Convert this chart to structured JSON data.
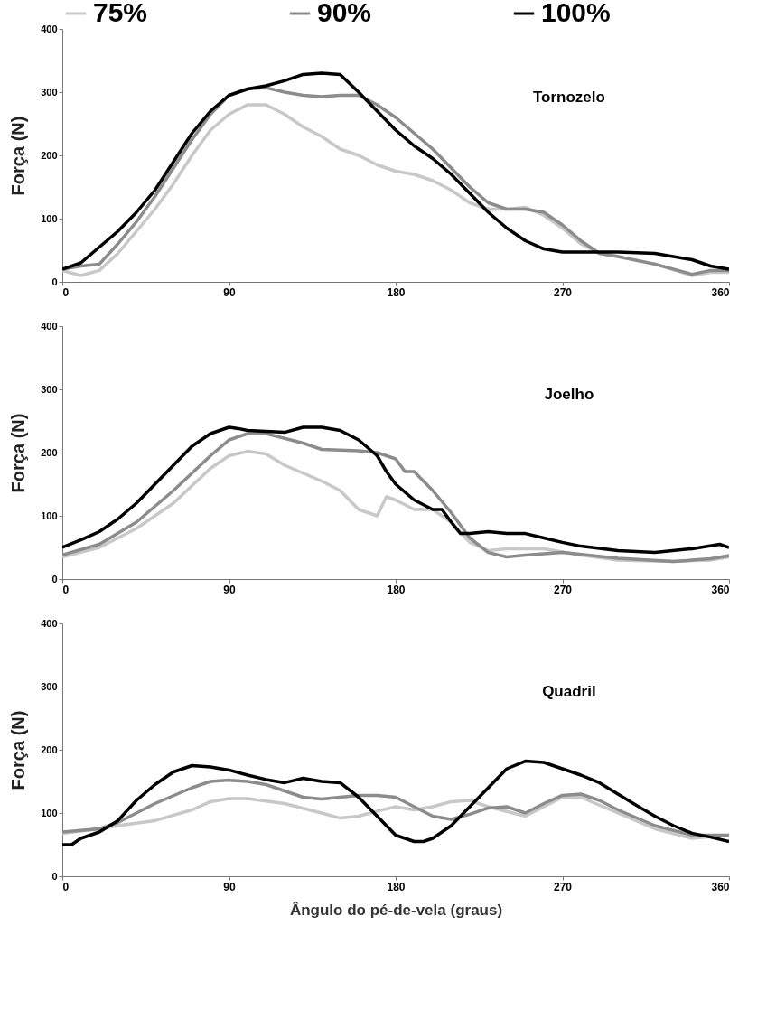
{
  "chart_data": [
    {
      "type": "line",
      "ylabel": "Força (N)",
      "annotations": [
        "Tornozelo"
      ],
      "legend": "top",
      "grid": false,
      "xlim": [
        0,
        360
      ],
      "xticks": [
        0,
        90,
        180,
        270,
        360
      ],
      "ylim": [
        0,
        400
      ],
      "yticks": [
        0,
        100,
        200,
        300,
        400
      ],
      "series": [
        {
          "name": "75%",
          "color": "#c8c8c8",
          "x": [
            0,
            10,
            20,
            30,
            40,
            50,
            60,
            70,
            80,
            90,
            100,
            110,
            120,
            130,
            140,
            150,
            160,
            170,
            180,
            190,
            200,
            210,
            220,
            230,
            240,
            250,
            260,
            270,
            280,
            290,
            300,
            320,
            340,
            350,
            360
          ],
          "values": [
            18,
            10,
            18,
            45,
            80,
            115,
            155,
            200,
            240,
            265,
            280,
            280,
            265,
            245,
            230,
            210,
            200,
            185,
            175,
            170,
            160,
            145,
            125,
            115,
            115,
            118,
            105,
            85,
            60,
            45,
            40,
            28,
            10,
            15,
            15
          ]
        },
        {
          "name": "90%",
          "color": "#8c8c8c",
          "x": [
            0,
            10,
            20,
            30,
            40,
            50,
            60,
            70,
            80,
            90,
            100,
            110,
            120,
            130,
            140,
            150,
            160,
            170,
            180,
            190,
            200,
            210,
            220,
            230,
            240,
            250,
            260,
            270,
            280,
            290,
            300,
            320,
            340,
            350,
            360
          ],
          "values": [
            20,
            25,
            28,
            60,
            95,
            135,
            180,
            225,
            265,
            295,
            305,
            307,
            300,
            295,
            293,
            295,
            295,
            280,
            260,
            235,
            210,
            180,
            150,
            125,
            115,
            115,
            110,
            90,
            65,
            45,
            40,
            28,
            12,
            18,
            18
          ]
        },
        {
          "name": "100%",
          "color": "#000000",
          "x": [
            0,
            10,
            20,
            30,
            40,
            50,
            60,
            70,
            80,
            90,
            100,
            110,
            120,
            130,
            140,
            150,
            160,
            170,
            180,
            190,
            200,
            210,
            220,
            230,
            240,
            250,
            260,
            270,
            280,
            300,
            320,
            340,
            350,
            360
          ],
          "values": [
            20,
            30,
            55,
            80,
            110,
            145,
            190,
            235,
            270,
            295,
            305,
            310,
            318,
            328,
            330,
            328,
            300,
            270,
            240,
            215,
            195,
            170,
            140,
            110,
            85,
            65,
            52,
            47,
            47,
            47,
            45,
            35,
            25,
            20
          ]
        }
      ]
    },
    {
      "type": "line",
      "ylabel": "Força (N)",
      "annotations": [
        "Joelho"
      ],
      "grid": false,
      "xlim": [
        0,
        360
      ],
      "xticks": [
        0,
        90,
        180,
        270,
        360
      ],
      "ylim": [
        0,
        400
      ],
      "yticks": [
        0,
        100,
        200,
        300,
        400
      ],
      "series": [
        {
          "color": "#c8c8c8",
          "x": [
            0,
            20,
            40,
            60,
            80,
            90,
            100,
            110,
            120,
            140,
            150,
            160,
            170,
            175,
            180,
            190,
            200,
            210,
            220,
            230,
            240,
            260,
            280,
            300,
            330,
            350,
            360
          ],
          "values": [
            35,
            50,
            80,
            120,
            175,
            195,
            202,
            198,
            180,
            155,
            140,
            110,
            100,
            130,
            125,
            110,
            110,
            90,
            58,
            45,
            48,
            48,
            38,
            30,
            28,
            30,
            35
          ]
        },
        {
          "color": "#8c8c8c",
          "x": [
            0,
            20,
            40,
            60,
            80,
            90,
            100,
            110,
            130,
            140,
            160,
            170,
            180,
            185,
            190,
            200,
            210,
            220,
            230,
            240,
            250,
            270,
            300,
            330,
            350,
            360
          ],
          "values": [
            38,
            55,
            90,
            140,
            195,
            220,
            230,
            230,
            215,
            205,
            203,
            200,
            190,
            170,
            170,
            140,
            105,
            65,
            42,
            35,
            38,
            42,
            33,
            28,
            32,
            37
          ]
        },
        {
          "color": "#000000",
          "x": [
            0,
            10,
            20,
            30,
            40,
            50,
            60,
            70,
            80,
            90,
            95,
            100,
            120,
            130,
            140,
            150,
            160,
            170,
            175,
            180,
            190,
            200,
            205,
            210,
            215,
            220,
            230,
            240,
            250,
            260,
            270,
            280,
            300,
            320,
            340,
            355,
            360
          ],
          "values": [
            50,
            62,
            75,
            95,
            120,
            150,
            180,
            210,
            230,
            240,
            238,
            235,
            232,
            240,
            240,
            235,
            220,
            195,
            170,
            150,
            125,
            110,
            110,
            90,
            72,
            72,
            75,
            72,
            72,
            65,
            58,
            52,
            45,
            42,
            48,
            55,
            50
          ]
        }
      ]
    },
    {
      "type": "line",
      "ylabel": "Força (N)",
      "xlabel": "Ângulo do pé-de-vela (graus)",
      "annotations": [
        "Quadril"
      ],
      "grid": false,
      "xlim": [
        0,
        360
      ],
      "xticks": [
        0,
        90,
        180,
        270,
        360
      ],
      "ylim": [
        0,
        400
      ],
      "yticks": [
        0,
        100,
        200,
        300,
        400
      ],
      "series": [
        {
          "color": "#c8c8c8",
          "x": [
            0,
            20,
            30,
            50,
            70,
            80,
            90,
            100,
            120,
            140,
            150,
            160,
            170,
            180,
            190,
            200,
            210,
            220,
            230,
            250,
            260,
            270,
            280,
            300,
            320,
            340,
            360
          ],
          "values": [
            68,
            75,
            80,
            88,
            105,
            118,
            123,
            123,
            115,
            100,
            92,
            95,
            103,
            110,
            105,
            110,
            118,
            120,
            110,
            95,
            110,
            125,
            125,
            100,
            75,
            60,
            65
          ]
        },
        {
          "color": "#8c8c8c",
          "x": [
            0,
            20,
            30,
            50,
            70,
            80,
            90,
            100,
            110,
            120,
            130,
            140,
            150,
            160,
            170,
            180,
            190,
            200,
            210,
            220,
            230,
            240,
            250,
            260,
            270,
            280,
            290,
            300,
            320,
            340,
            360
          ],
          "values": [
            70,
            75,
            85,
            115,
            140,
            150,
            152,
            150,
            145,
            135,
            125,
            122,
            125,
            128,
            128,
            125,
            110,
            95,
            90,
            98,
            108,
            110,
            100,
            115,
            128,
            130,
            120,
            105,
            80,
            65,
            65
          ]
        },
        {
          "color": "#000000",
          "x": [
            0,
            5,
            10,
            20,
            30,
            40,
            50,
            60,
            70,
            80,
            90,
            100,
            110,
            120,
            130,
            140,
            150,
            160,
            170,
            180,
            185,
            190,
            195,
            200,
            210,
            220,
            230,
            240,
            250,
            260,
            270,
            280,
            290,
            300,
            310,
            320,
            330,
            340,
            350,
            360
          ],
          "values": [
            50,
            50,
            60,
            70,
            88,
            120,
            145,
            165,
            175,
            173,
            168,
            160,
            153,
            148,
            155,
            150,
            148,
            125,
            95,
            65,
            60,
            55,
            55,
            60,
            80,
            110,
            140,
            170,
            182,
            180,
            170,
            160,
            148,
            130,
            112,
            95,
            80,
            68,
            62,
            55
          ]
        }
      ]
    }
  ]
}
